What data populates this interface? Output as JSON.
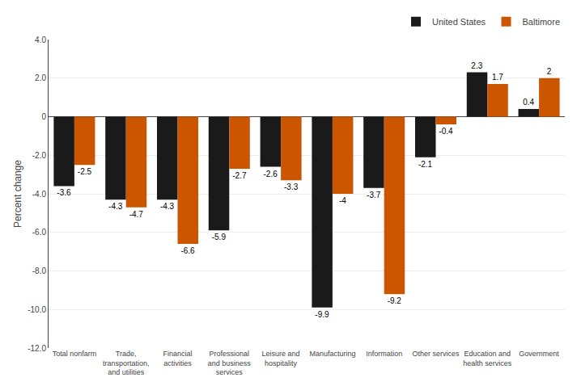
{
  "chart_data": {
    "type": "bar",
    "ylabel": "Percent change",
    "categories": [
      "Total nonfarm",
      "Trade,\ntransportation,\nand utilities",
      "Financial\nactivities",
      "Professional\nand business\nservices",
      "Leisure and\nhospitality",
      "Manufacturing",
      "Information",
      "Other services",
      "Education and\nhealth services",
      "Government"
    ],
    "series": [
      {
        "name": "United States",
        "color": "#1a1a1a",
        "values": [
          -3.6,
          -4.3,
          -4.3,
          -5.9,
          -2.6,
          -9.9,
          -3.7,
          -2.1,
          2.3,
          0.4
        ]
      },
      {
        "name": "Baltimore",
        "color": "#cc5500",
        "values": [
          -2.5,
          -4.7,
          -6.6,
          -2.7,
          -3.3,
          -4.0,
          -9.2,
          -0.4,
          1.7,
          2.0
        ]
      }
    ],
    "ylim": [
      -12.0,
      4.0
    ],
    "yticks": [
      {
        "value": -12.0,
        "label": "-12.0"
      },
      {
        "value": -10.0,
        "label": "-10.0"
      },
      {
        "value": -8.0,
        "label": "-8.0"
      },
      {
        "value": -6.0,
        "label": "-6.0"
      },
      {
        "value": -4.0,
        "label": "-4.0"
      },
      {
        "value": -2.0,
        "label": "-2.0"
      },
      0,
      {
        "value": 2.0,
        "label": "2.0"
      },
      {
        "value": 4.0,
        "label": "4.0"
      }
    ],
    "grid": true,
    "legend": "upper right",
    "data_labels": true
  }
}
